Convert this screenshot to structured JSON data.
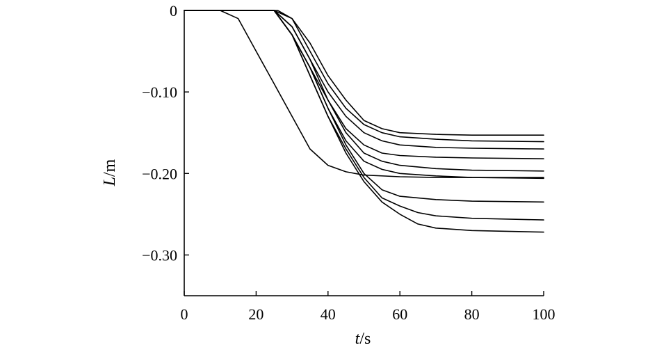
{
  "chart_data": {
    "type": "line",
    "title": "",
    "xlabel": {
      "var": "t",
      "unit": "/s"
    },
    "ylabel": {
      "var": "L",
      "unit": "/m"
    },
    "xlim": [
      0,
      100
    ],
    "ylim": [
      -0.35,
      0
    ],
    "xticks": [
      0,
      20,
      40,
      60,
      80,
      100
    ],
    "yticks": [
      0,
      -0.1,
      -0.2,
      -0.3
    ],
    "xtick_labels": [
      "0",
      "20",
      "40",
      "60",
      "80",
      "100"
    ],
    "ytick_labels": [
      "0",
      "−0.10",
      "−0.20",
      "−0.30"
    ],
    "grid": false,
    "legend": "none",
    "line_color": "#000000",
    "series": [
      {
        "x": [
          0,
          10,
          15,
          20,
          25,
          30,
          35,
          40,
          45,
          50,
          60,
          70,
          80,
          100
        ],
        "y": [
          0,
          0,
          -0.01,
          -0.05,
          -0.09,
          -0.13,
          -0.17,
          -0.19,
          -0.198,
          -0.202,
          -0.204,
          -0.205,
          -0.205,
          -0.205
        ]
      },
      {
        "x": [
          0,
          26,
          30,
          35,
          40,
          45,
          50,
          55,
          60,
          70,
          80,
          100
        ],
        "y": [
          0,
          0,
          -0.01,
          -0.04,
          -0.08,
          -0.11,
          -0.135,
          -0.145,
          -0.15,
          -0.152,
          -0.153,
          -0.153
        ]
      },
      {
        "x": [
          0,
          25,
          30,
          35,
          40,
          45,
          50,
          55,
          60,
          70,
          80,
          100
        ],
        "y": [
          0,
          0,
          -0.01,
          -0.05,
          -0.09,
          -0.12,
          -0.14,
          -0.15,
          -0.155,
          -0.158,
          -0.16,
          -0.161
        ]
      },
      {
        "x": [
          0,
          25,
          30,
          35,
          40,
          45,
          50,
          55,
          60,
          70,
          80,
          100
        ],
        "y": [
          0,
          0,
          -0.02,
          -0.06,
          -0.1,
          -0.13,
          -0.15,
          -0.16,
          -0.165,
          -0.168,
          -0.169,
          -0.17
        ]
      },
      {
        "x": [
          0,
          25,
          30,
          35,
          40,
          45,
          50,
          55,
          60,
          70,
          80,
          100
        ],
        "y": [
          0,
          0,
          -0.03,
          -0.07,
          -0.11,
          -0.145,
          -0.165,
          -0.175,
          -0.178,
          -0.18,
          -0.181,
          -0.182
        ]
      },
      {
        "x": [
          0,
          25,
          30,
          35,
          40,
          45,
          50,
          55,
          60,
          70,
          80,
          100
        ],
        "y": [
          0,
          0,
          -0.02,
          -0.06,
          -0.11,
          -0.15,
          -0.175,
          -0.185,
          -0.19,
          -0.194,
          -0.196,
          -0.197
        ]
      },
      {
        "x": [
          0,
          25,
          30,
          35,
          40,
          45,
          50,
          55,
          60,
          70,
          80,
          100
        ],
        "y": [
          0,
          0,
          -0.03,
          -0.07,
          -0.12,
          -0.16,
          -0.185,
          -0.195,
          -0.2,
          -0.203,
          -0.205,
          -0.206
        ]
      },
      {
        "x": [
          0,
          25,
          30,
          35,
          40,
          45,
          50,
          55,
          60,
          70,
          80,
          100
        ],
        "y": [
          0,
          0,
          -0.03,
          -0.07,
          -0.12,
          -0.165,
          -0.2,
          -0.22,
          -0.228,
          -0.232,
          -0.234,
          -0.235
        ]
      },
      {
        "x": [
          0,
          25,
          30,
          35,
          40,
          45,
          50,
          55,
          60,
          65,
          70,
          80,
          100
        ],
        "y": [
          0,
          0,
          -0.03,
          -0.08,
          -0.13,
          -0.17,
          -0.205,
          -0.23,
          -0.24,
          -0.248,
          -0.252,
          -0.255,
          -0.257
        ]
      },
      {
        "x": [
          0,
          25,
          30,
          35,
          40,
          45,
          50,
          55,
          60,
          65,
          70,
          80,
          100
        ],
        "y": [
          0,
          0,
          -0.03,
          -0.08,
          -0.13,
          -0.175,
          -0.21,
          -0.235,
          -0.25,
          -0.262,
          -0.267,
          -0.27,
          -0.272
        ]
      }
    ]
  }
}
